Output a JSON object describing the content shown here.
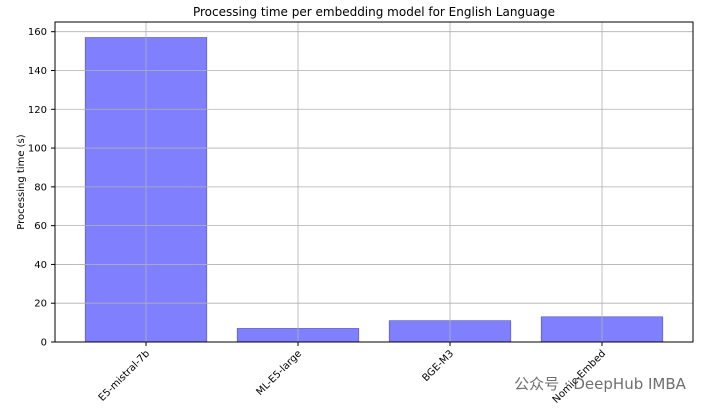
{
  "chart_data": {
    "type": "bar",
    "title": "Processing time per embedding model for English Language",
    "ylabel": "Processing time (s)",
    "categories": [
      "E5-mistral-7b",
      "ML-E5-large",
      "BGE-M3",
      "Nomic-Embed"
    ],
    "values": [
      157,
      7,
      11,
      13
    ],
    "color": "#8080ff",
    "ylim": [
      0,
      165
    ],
    "yticks": [
      0,
      20,
      40,
      60,
      80,
      100,
      120,
      140,
      160
    ],
    "grid": true,
    "watermark": "公众号 · DeepHub IMBA"
  }
}
